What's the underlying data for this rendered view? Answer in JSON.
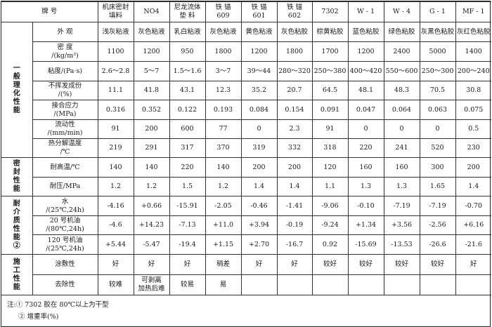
{
  "header": {
    "label": "牌  号",
    "columns": [
      "机床密封\n填料",
      "NO4",
      "尼龙流体\n垫  料",
      "铁  锚\n609",
      "铁  锚\n601",
      "铁  锚\n602",
      "7302",
      "W - 1",
      "W - 4",
      "G - 1",
      "MF - 1"
    ]
  },
  "groups": [
    {
      "label": "一般理化性能",
      "rows": [
        {
          "property": "外  观",
          "values": [
            "浅灰粘液",
            "灰色粘液",
            "乳白粘液",
            "灰色粘液",
            "黄色粘液",
            "灰色粘胶",
            "棕黄粘胶",
            "蓝色粘胶",
            "绿色粘胶",
            "灰黑色粘胶",
            "灰红色粘胶"
          ]
        },
        {
          "property": "密  度\n/(kg/m³)",
          "values": [
            "1100",
            "1200",
            "950",
            "1800",
            "1200",
            "1800",
            "1700",
            "1200",
            "2400",
            "5000",
            "1400"
          ]
        },
        {
          "property": "粘度/(Pa·s)",
          "values": [
            "2.6～2.8",
            "5～7",
            "1.5～1.6",
            "3～7",
            "39～44",
            "280～320",
            "250～380",
            "400～420",
            "550～600",
            "250～300",
            "200～240"
          ]
        },
        {
          "property": "不挥发成份\n/(%)",
          "values": [
            "11.1",
            "41.8",
            "43.1",
            "12.3",
            "35.2",
            "20.7",
            "64.5",
            "48.1",
            "48.3",
            "70.5",
            "30.8"
          ]
        },
        {
          "property": "接合应力\n/(MPa)",
          "values": [
            "0.316",
            "0.352",
            "0.122",
            "0.193",
            "0.084",
            "0.154",
            "0.091",
            "0.047",
            "0.064",
            "0.063",
            "0.075"
          ]
        },
        {
          "property": "流动性\n/(mm/min)",
          "values": [
            "91",
            "200",
            "600",
            "77",
            "0",
            "2.3",
            "91",
            "0",
            "0",
            "0",
            "0.5"
          ]
        },
        {
          "property": "热分解温度\n/℃",
          "values": [
            "219",
            "291",
            "317",
            "370",
            "319",
            "332",
            "318",
            "220",
            "241",
            "520",
            "230"
          ]
        }
      ]
    },
    {
      "label": "密封性能",
      "rows": [
        {
          "property": "耐高温/℃",
          "values": [
            "140",
            "140",
            "220",
            "140",
            "200",
            "200",
            "120",
            "160",
            "160",
            "300",
            "200"
          ]
        },
        {
          "property": "耐压/MPa",
          "values": [
            "1.2",
            "1.2",
            "1.5",
            "1.2",
            "1.4",
            "1.4",
            "1.1",
            "1.3",
            "1.3",
            "1.65",
            "1.4"
          ]
        }
      ]
    },
    {
      "label": "耐介质性能②",
      "rows": [
        {
          "property": "水\n/(25℃,24h)",
          "values": [
            "-4.16",
            "+0.66",
            "-15.91",
            "-2.05",
            "-0.46",
            "-1.41",
            "-9.06",
            "-0.10",
            "-7.19",
            "-7.19",
            "-0.70"
          ]
        },
        {
          "property": "20 号机油\n/(80℃,24h)",
          "values": [
            "-4.6",
            "+14.23",
            "-7.13",
            "+11.0",
            "+3.94",
            "-0.19",
            "-9.24",
            "+1.34",
            "+3.56",
            "-2.56",
            "+6.16"
          ]
        },
        {
          "property": "120 号机油\n/(25℃,24h)",
          "values": [
            "+5.44",
            "-5.47",
            "-19.4",
            "+1.15",
            "+2.70",
            "-16.7",
            "0.92",
            "-15.69",
            "-13.53",
            "-26.6",
            "-21.6"
          ]
        }
      ]
    },
    {
      "label": "施工性能",
      "rows": [
        {
          "property": "涂敷性",
          "values": [
            "好",
            "好",
            "好",
            "稍差",
            "好",
            "好",
            "较好",
            "较好",
            "较好",
            "较好",
            "好"
          ]
        },
        {
          "property": "去除性",
          "values": [
            "较难",
            "可剥离\n加热后难",
            "较易",
            "易",
            "",
            "",
            "",
            "",
            "",
            "",
            ""
          ]
        }
      ]
    }
  ],
  "notes": [
    "注:① 7302 胶在 80℃以上为干型",
    "② 增重率(%)"
  ]
}
